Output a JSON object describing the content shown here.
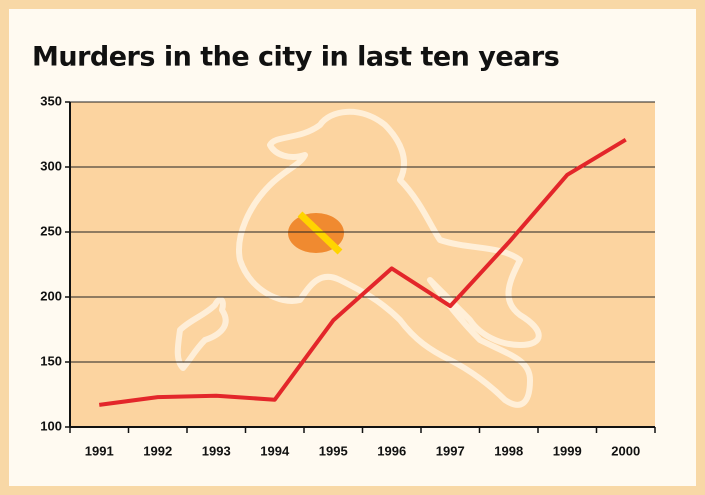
{
  "chart_data": {
    "type": "line",
    "title": "Murders in the city in last ten years",
    "categories": [
      "1991",
      "1992",
      "1993",
      "1994",
      "1995",
      "1996",
      "1997",
      "1998",
      "1999",
      "2000"
    ],
    "values": [
      117,
      123,
      124,
      121,
      182,
      222,
      193,
      242,
      294,
      321
    ],
    "color": "#e3262a",
    "ylim": [
      100,
      350
    ],
    "yticks": [
      100,
      150,
      200,
      250,
      300,
      350
    ],
    "grid": true
  }
}
